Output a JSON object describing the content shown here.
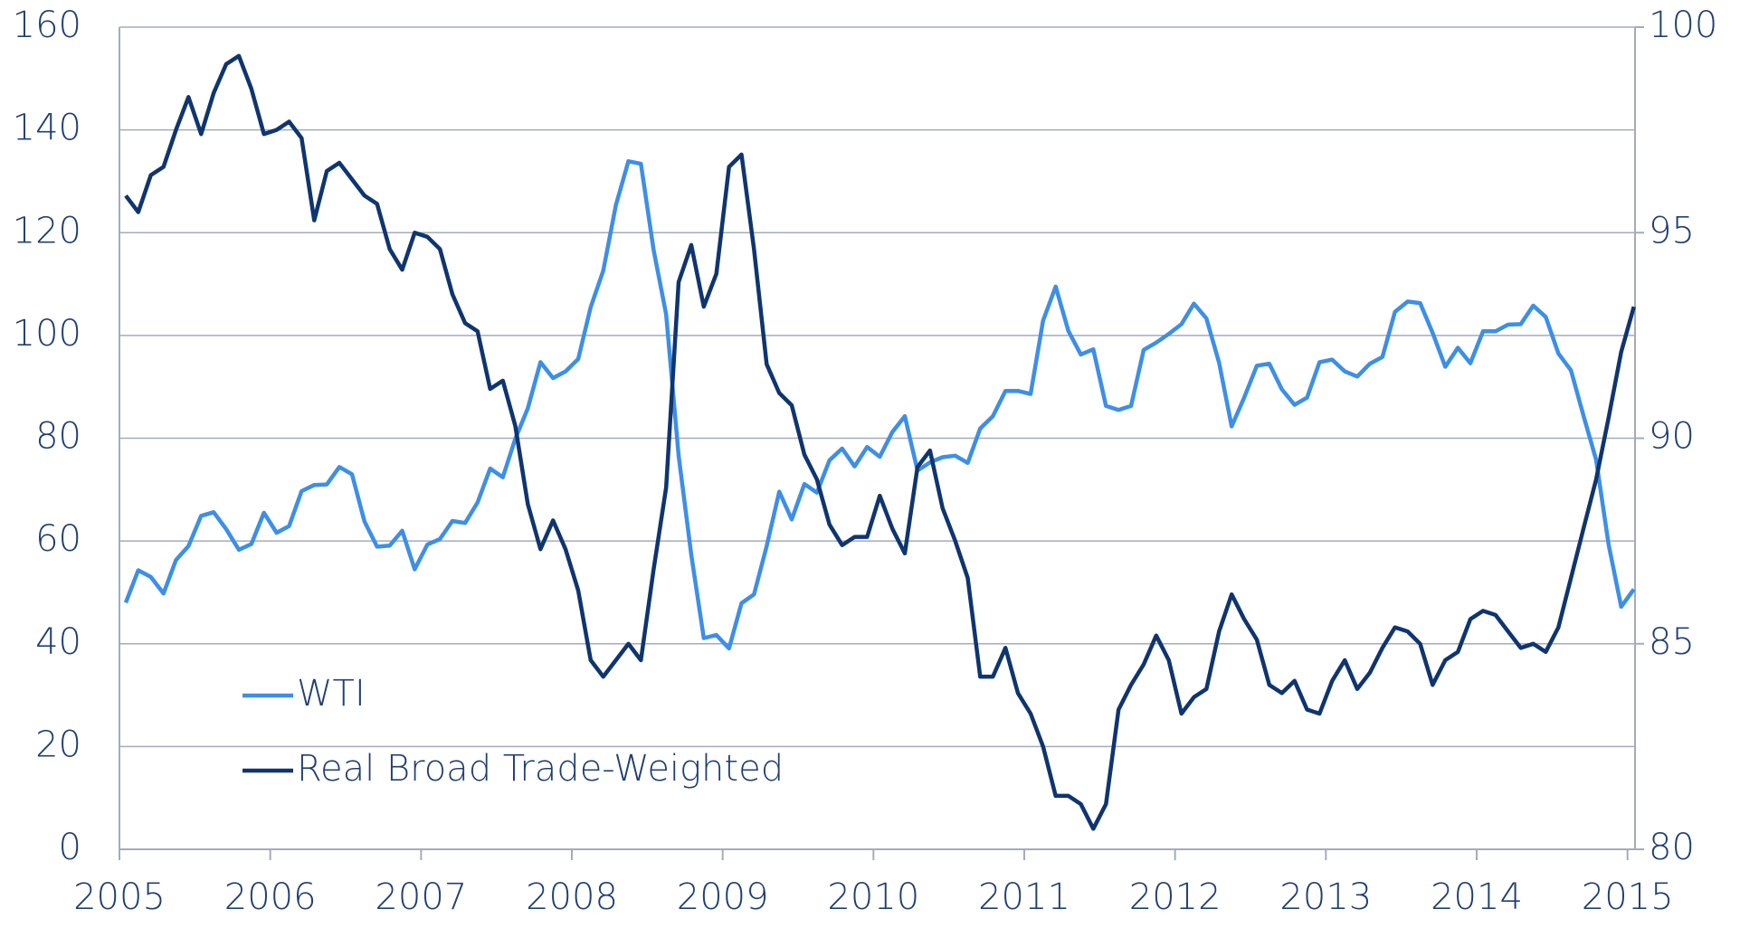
{
  "chart_data": {
    "type": "line",
    "xlim": [
      2005,
      2015.05
    ],
    "xticks": [
      2005,
      2006,
      2007,
      2008,
      2009,
      2010,
      2011,
      2012,
      2013,
      2014,
      2015
    ],
    "ylim": [
      0,
      160
    ],
    "yticks": [
      0,
      20,
      40,
      60,
      80,
      100,
      120,
      140,
      160
    ],
    "y2lim": [
      80,
      100
    ],
    "y2ticks": [
      80,
      85,
      90,
      95,
      100
    ],
    "grid": true,
    "legend": "lower-left",
    "x": [
      2005.042,
      2005.125,
      2005.208,
      2005.292,
      2005.375,
      2005.458,
      2005.542,
      2005.625,
      2005.708,
      2005.792,
      2005.875,
      2005.958,
      2006.042,
      2006.125,
      2006.208,
      2006.292,
      2006.375,
      2006.458,
      2006.542,
      2006.625,
      2006.708,
      2006.792,
      2006.875,
      2006.958,
      2007.042,
      2007.125,
      2007.208,
      2007.292,
      2007.375,
      2007.458,
      2007.542,
      2007.625,
      2007.708,
      2007.792,
      2007.875,
      2007.958,
      2008.042,
      2008.125,
      2008.208,
      2008.292,
      2008.375,
      2008.458,
      2008.542,
      2008.625,
      2008.708,
      2008.792,
      2008.875,
      2008.958,
      2009.042,
      2009.125,
      2009.208,
      2009.292,
      2009.375,
      2009.458,
      2009.542,
      2009.625,
      2009.708,
      2009.792,
      2009.875,
      2009.958,
      2010.042,
      2010.125,
      2010.208,
      2010.292,
      2010.375,
      2010.458,
      2010.542,
      2010.625,
      2010.708,
      2010.792,
      2010.875,
      2010.958,
      2011.042,
      2011.125,
      2011.208,
      2011.292,
      2011.375,
      2011.458,
      2011.542,
      2011.625,
      2011.708,
      2011.792,
      2011.875,
      2011.958,
      2012.042,
      2012.125,
      2012.208,
      2012.292,
      2012.375,
      2012.458,
      2012.542,
      2012.625,
      2012.708,
      2012.792,
      2012.875,
      2012.958,
      2013.042,
      2013.125,
      2013.208,
      2013.292,
      2013.375,
      2013.458,
      2013.542,
      2013.625,
      2013.708,
      2013.792,
      2013.875,
      2013.958,
      2014.042,
      2014.125,
      2014.208,
      2014.292,
      2014.375,
      2014.458,
      2014.542,
      2014.625,
      2014.708,
      2014.792,
      2014.875,
      2014.958,
      2015.042
    ],
    "series": [
      {
        "name": "WTI",
        "color": "#3d8fe6",
        "values": [
          48.0,
          54.3,
          53.0,
          49.8,
          56.3,
          59.0,
          64.9,
          65.6,
          62.3,
          58.3,
          59.4,
          65.5,
          61.6,
          62.9,
          69.7,
          70.9,
          71.0,
          74.4,
          73.0,
          63.8,
          58.9,
          59.1,
          62.0,
          54.5,
          59.3,
          60.4,
          63.9,
          63.5,
          67.5,
          74.1,
          72.4,
          79.9,
          85.8,
          94.8,
          91.7,
          93.0,
          95.4,
          105.5,
          112.6,
          125.4,
          133.9,
          133.4,
          116.7,
          104.1,
          76.6,
          57.3,
          41.1,
          41.7,
          39.1,
          47.9,
          49.6,
          59.0,
          69.6,
          64.2,
          71.1,
          69.4,
          75.7,
          78.0,
          74.5,
          78.3,
          76.4,
          81.2,
          84.3,
          73.7,
          75.3,
          76.3,
          76.6,
          75.2,
          81.9,
          84.3,
          89.2,
          89.2,
          88.6,
          102.9,
          109.5,
          100.9,
          96.3,
          97.3,
          86.3,
          85.5,
          86.3,
          97.2,
          98.6,
          100.3,
          102.2,
          106.2,
          103.3,
          94.7,
          82.3,
          87.9,
          94.1,
          94.5,
          89.5,
          86.5,
          87.9,
          94.8,
          95.3,
          93.0,
          92.0,
          94.5,
          95.8,
          104.6,
          106.6,
          106.3,
          100.5,
          93.9,
          97.6,
          94.6,
          100.8,
          100.8,
          102.1,
          102.2,
          105.8,
          103.6,
          96.5,
          93.2,
          84.4,
          75.8,
          59.3,
          47.2,
          50.6
        ]
      },
      {
        "name": "Real Broad Trade-Weighted",
        "color": "#0f3570",
        "axis": "y2",
        "values": [
          95.9,
          95.5,
          96.4,
          96.6,
          97.5,
          98.3,
          97.4,
          98.4,
          99.1,
          99.3,
          98.5,
          97.4,
          97.5,
          97.7,
          97.3,
          95.3,
          96.5,
          96.7,
          96.3,
          95.9,
          95.7,
          94.6,
          94.1,
          95.0,
          94.9,
          94.6,
          93.5,
          92.8,
          92.6,
          91.2,
          91.4,
          90.3,
          88.4,
          87.3,
          88.0,
          87.3,
          86.3,
          84.6,
          84.2,
          84.6,
          85.0,
          84.6,
          86.8,
          88.8,
          93.8,
          94.7,
          93.2,
          94.0,
          96.6,
          96.9,
          94.6,
          91.8,
          91.1,
          90.8,
          89.6,
          89.0,
          87.9,
          87.4,
          87.6,
          87.6,
          88.6,
          87.8,
          87.2,
          89.3,
          89.7,
          88.3,
          87.5,
          86.6,
          84.2,
          84.2,
          84.9,
          83.8,
          83.3,
          82.5,
          81.3,
          81.3,
          81.1,
          80.5,
          81.1,
          83.4,
          84.0,
          84.5,
          85.2,
          84.6,
          83.3,
          83.7,
          83.9,
          85.3,
          86.2,
          85.6,
          85.1,
          84.0,
          83.8,
          84.1,
          83.4,
          83.3,
          84.1,
          84.6,
          83.9,
          84.3,
          84.9,
          85.4,
          85.3,
          85.0,
          84.0,
          84.6,
          84.8,
          85.6,
          85.8,
          85.7,
          85.3,
          84.9,
          85.0,
          84.8,
          85.4,
          86.6,
          87.8,
          89.0,
          90.5,
          92.1,
          93.2
        ]
      }
    ]
  }
}
